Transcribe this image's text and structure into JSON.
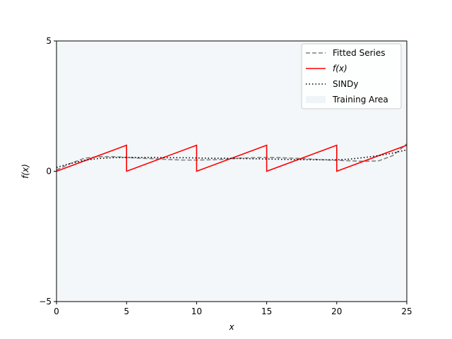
{
  "chart_data": {
    "type": "line",
    "title": "",
    "xlabel": "x",
    "ylabel": "f(x)",
    "xlim": [
      0,
      25
    ],
    "ylim": [
      -5,
      5
    ],
    "xticks": [
      "0",
      "5",
      "10",
      "15",
      "20",
      "25"
    ],
    "yticks": [
      "−5",
      "0",
      "5"
    ],
    "legend_position": "top-right",
    "grid": false,
    "training_area": {
      "name": "Training Area",
      "x_start": 0,
      "x_end": 25,
      "color": "#d6e6f0"
    },
    "series": [
      {
        "name": "Fitted Series",
        "style": "dashed",
        "color": "#808080",
        "x": [
          0,
          1,
          2,
          3,
          4,
          5,
          6,
          7,
          8,
          9,
          10,
          11,
          12,
          13,
          14,
          15,
          16,
          17,
          18,
          19,
          20,
          21,
          22,
          23,
          24,
          25
        ],
        "y": [
          0.05,
          0.3,
          0.5,
          0.56,
          0.56,
          0.53,
          0.5,
          0.48,
          0.45,
          0.43,
          0.43,
          0.44,
          0.46,
          0.5,
          0.52,
          0.53,
          0.52,
          0.5,
          0.47,
          0.44,
          0.42,
          0.4,
          0.38,
          0.4,
          0.6,
          1.05
        ]
      },
      {
        "name": "f(x)",
        "style": "solid",
        "color": "#ff0000",
        "x": [
          0,
          5,
          5,
          10,
          10,
          15,
          15,
          20,
          20,
          25
        ],
        "y": [
          0,
          1,
          0,
          1,
          0,
          1,
          0,
          1,
          0,
          1
        ]
      },
      {
        "name": "SINDy",
        "style": "dotted",
        "color": "#000000",
        "x": [
          0,
          1,
          2,
          3,
          4,
          5,
          6,
          7,
          8,
          9,
          10,
          11,
          12,
          13,
          14,
          15,
          16,
          17,
          18,
          19,
          20,
          21,
          22,
          23,
          24,
          25
        ],
        "y": [
          0.15,
          0.3,
          0.42,
          0.49,
          0.52,
          0.53,
          0.53,
          0.53,
          0.52,
          0.52,
          0.51,
          0.5,
          0.5,
          0.49,
          0.48,
          0.47,
          0.46,
          0.45,
          0.44,
          0.44,
          0.44,
          0.47,
          0.53,
          0.6,
          0.7,
          0.82
        ]
      }
    ]
  }
}
